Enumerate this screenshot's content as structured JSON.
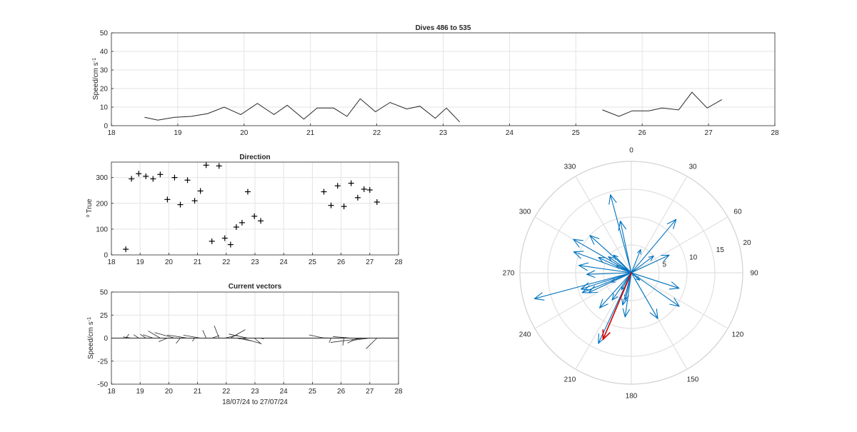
{
  "chart_data": [
    {
      "id": "speed",
      "type": "line",
      "title": "Dives 486 to 535",
      "xlabel": "",
      "ylabel": "Speed/cm s",
      "ylabel_sup": "-1",
      "xlim": [
        18,
        28
      ],
      "ylim": [
        0,
        50
      ],
      "xticks": [
        18,
        19,
        20,
        21,
        22,
        23,
        24,
        25,
        26,
        27,
        28
      ],
      "yticks": [
        0,
        10,
        20,
        30,
        40,
        50
      ],
      "color": "#262626",
      "segments": [
        [
          [
            18.5,
            4.5
          ],
          [
            18.7,
            3
          ],
          [
            18.95,
            4.5
          ],
          [
            19.2,
            5
          ],
          [
            19.45,
            6.5
          ],
          [
            19.7,
            10
          ],
          [
            19.95,
            6
          ],
          [
            20.2,
            12
          ],
          [
            20.45,
            6
          ],
          [
            20.65,
            11
          ],
          [
            20.9,
            3.5
          ],
          [
            21.1,
            9.5
          ],
          [
            21.35,
            9.5
          ],
          [
            21.55,
            5
          ],
          [
            21.75,
            14.5
          ],
          [
            21.98,
            7.5
          ],
          [
            22.2,
            12.5
          ],
          [
            22.45,
            9
          ],
          [
            22.65,
            10.5
          ],
          [
            22.88,
            4
          ],
          [
            23.05,
            9.5
          ],
          [
            23.25,
            2
          ]
        ],
        [
          [
            25.4,
            8.5
          ],
          [
            25.65,
            5
          ],
          [
            25.85,
            8
          ],
          [
            26.1,
            8
          ],
          [
            26.3,
            9.5
          ],
          [
            26.55,
            8.5
          ],
          [
            26.75,
            18
          ],
          [
            26.98,
            9.5
          ],
          [
            27.2,
            14
          ]
        ]
      ]
    },
    {
      "id": "direction",
      "type": "scatter",
      "title": "Direction",
      "xlabel": "",
      "ylabel": "True",
      "ylabel_sup": "o",
      "xlim": [
        18,
        28
      ],
      "ylim": [
        0,
        360
      ],
      "xticks": [
        18,
        19,
        20,
        21,
        22,
        23,
        24,
        25,
        26,
        27,
        28
      ],
      "yticks": [
        0,
        100,
        200,
        300
      ],
      "marker": "+",
      "points": [
        [
          18.5,
          22
        ],
        [
          18.7,
          295
        ],
        [
          18.95,
          315
        ],
        [
          19.2,
          305
        ],
        [
          19.45,
          295
        ],
        [
          19.7,
          312
        ],
        [
          19.95,
          215
        ],
        [
          20.2,
          300
        ],
        [
          20.4,
          195
        ],
        [
          20.65,
          290
        ],
        [
          20.9,
          210
        ],
        [
          21.1,
          248
        ],
        [
          21.3,
          348
        ],
        [
          21.5,
          53
        ],
        [
          21.75,
          345
        ],
        [
          21.95,
          65
        ],
        [
          22.15,
          40
        ],
        [
          22.35,
          108
        ],
        [
          22.55,
          125
        ],
        [
          22.75,
          245
        ],
        [
          22.98,
          150
        ],
        [
          23.2,
          132
        ],
        [
          25.4,
          245
        ],
        [
          25.65,
          192
        ],
        [
          25.88,
          268
        ],
        [
          26.1,
          188
        ],
        [
          26.35,
          278
        ],
        [
          26.58,
          222
        ],
        [
          26.8,
          255
        ],
        [
          27.0,
          252
        ],
        [
          27.25,
          205
        ]
      ]
    },
    {
      "id": "vectors",
      "type": "line",
      "title": "Current vectors",
      "xlabel": "18/07/24 to 27/07/24",
      "ylabel": "Speed/cm s",
      "ylabel_sup": "-1",
      "xlim": [
        18,
        28
      ],
      "ylim": [
        -50,
        50
      ],
      "xticks": [
        18,
        19,
        20,
        21,
        22,
        23,
        24,
        25,
        26,
        27,
        28
      ],
      "yticks": [
        -50,
        -25,
        0,
        25,
        50
      ],
      "color": "#262626",
      "sticks": [
        [
          18.5,
          1.7,
          4.2
        ],
        [
          18.7,
          -4.4,
          1.3
        ],
        [
          18.95,
          -2.6,
          3.7
        ],
        [
          19.2,
          -2.9,
          4.1
        ],
        [
          19.45,
          -5.3,
          3.7
        ],
        [
          19.7,
          -6.3,
          7.8
        ],
        [
          19.95,
          -4.6,
          -3.9
        ],
        [
          20.2,
          -10.4,
          6.0
        ],
        [
          20.4,
          -2.2,
          -5.7
        ],
        [
          20.65,
          -10.6,
          3.4
        ],
        [
          20.9,
          -1.2,
          -3.4
        ],
        [
          21.1,
          -8.9,
          3.2
        ],
        [
          21.3,
          -1.8,
          8.6
        ],
        [
          21.5,
          3.9,
          2.8
        ],
        [
          21.75,
          -2.5,
          13.5
        ],
        [
          21.95,
          6.7,
          3.2
        ],
        [
          22.15,
          7.7,
          9.2
        ],
        [
          22.35,
          8.0,
          -3.0
        ],
        [
          22.55,
          10.0,
          -6.0
        ],
        [
          22.75,
          -9.9,
          4.4
        ],
        [
          22.98,
          3.7,
          -6.5
        ],
        [
          23.2,
          1.5,
          -1.0
        ],
        [
          25.4,
          -7.7,
          3.5
        ],
        [
          25.65,
          -1.0,
          -4.9
        ],
        [
          25.88,
          -8.0,
          0.3
        ],
        [
          26.1,
          -0.6,
          -8.0
        ],
        [
          26.35,
          -9.5,
          1.6
        ],
        [
          26.58,
          -5.3,
          -5.3
        ],
        [
          26.8,
          -17.4,
          -4.7
        ],
        [
          27.0,
          -9.5,
          -2.5
        ],
        [
          27.25,
          -5.7,
          -11.6
        ]
      ]
    },
    {
      "id": "compass",
      "type": "scatter",
      "title": "",
      "angle_ticks": [
        "0",
        "30",
        "60",
        "90",
        "120",
        "150",
        "180",
        "210",
        "240",
        "270",
        "300",
        "330"
      ],
      "radial_ticks": [
        "5",
        "10",
        "15",
        "20"
      ],
      "rmax": 20,
      "vector_color": "#0072BD",
      "mean_color": "#D40000",
      "vectors": [
        [
          22,
          4.5
        ],
        [
          295,
          3
        ],
        [
          315,
          4.5
        ],
        [
          305,
          5
        ],
        [
          295,
          6.5
        ],
        [
          312,
          10
        ],
        [
          215,
          6
        ],
        [
          300,
          12
        ],
        [
          195,
          6
        ],
        [
          290,
          11
        ],
        [
          210,
          3.5
        ],
        [
          248,
          9.5
        ],
        [
          348,
          9.5
        ],
        [
          53,
          5
        ],
        [
          345,
          14.5
        ],
        [
          65,
          7.5
        ],
        [
          40,
          12.5
        ],
        [
          108,
          9
        ],
        [
          125,
          10.5
        ],
        [
          245,
          4
        ],
        [
          150,
          9.5
        ],
        [
          132,
          2
        ],
        [
          245,
          8.5
        ],
        [
          192,
          5
        ],
        [
          268,
          8
        ],
        [
          188,
          8
        ],
        [
          278,
          9.5
        ],
        [
          222,
          8.5
        ],
        [
          255,
          18
        ],
        [
          252,
          9.5
        ],
        [
          205,
          14
        ]
      ],
      "mean_vector": [
        203,
        13
      ]
    }
  ]
}
